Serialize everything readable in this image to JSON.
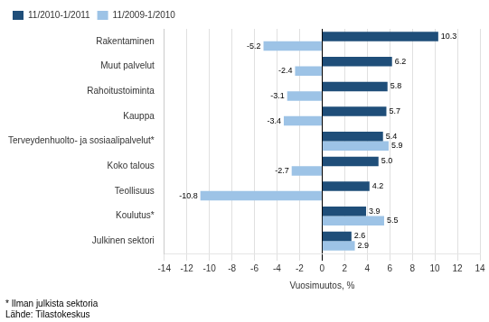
{
  "chart_data": {
    "type": "bar",
    "orientation": "horizontal",
    "categories": [
      "Julkinen sektori",
      "Koulutus*",
      "Teollisuus",
      "Koko talous",
      "Terveydenhuolto- ja sosiaalipalvelut*",
      "Kauppa",
      "Rahoitustoiminta",
      "Muut palvelut",
      "Rakentaminen"
    ],
    "series": [
      {
        "name": "11/2010-1/2011",
        "color": "#1F4E79",
        "values": [
          2.6,
          3.9,
          4.2,
          5.0,
          5.4,
          5.7,
          5.8,
          6.2,
          10.3
        ],
        "value_labels": [
          "2.6",
          "3.9",
          "4.2",
          "5.0",
          "5.4",
          "5.7",
          "5.8",
          "6.2",
          "10.3"
        ]
      },
      {
        "name": "11/2009-1/2010",
        "color": "#9DC3E6",
        "values": [
          2.9,
          5.5,
          -10.8,
          -2.7,
          5.9,
          -3.4,
          -3.1,
          -2.4,
          -5.2
        ]
      }
    ],
    "x_label": "Vuosimuutos, %",
    "xlim": [
      -14,
      14
    ],
    "xticks": [
      -14,
      -12,
      -10,
      -8,
      -6,
      -4,
      -2,
      0,
      2,
      4,
      6,
      8,
      10,
      12,
      14
    ],
    "grid": "x",
    "legend": "upper left",
    "data_labels": true,
    "annotations": [
      "* Ilman julkista sektoria",
      "Lähde: Tilastokeskus"
    ]
  }
}
